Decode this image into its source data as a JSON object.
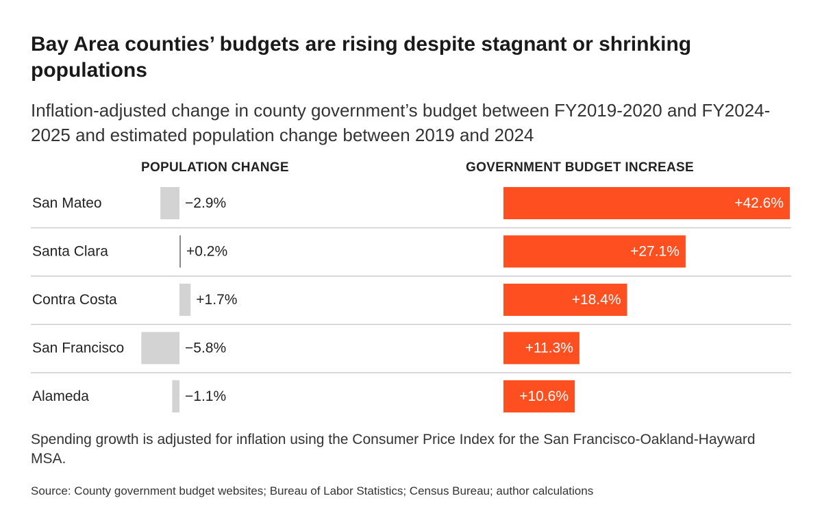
{
  "header": {
    "title": "Bay Area counties’ budgets are rising despite stagnant or shrinking populations",
    "subtitle": "Inflation-adjusted change in county government’s budget between FY2019-2020 and FY2024-2025 and estimated population change between 2019 and 2024"
  },
  "footer": {
    "note": "Spending growth is adjusted for inflation using the Consumer Price Index for the San Francisco-Oakland-Hayward MSA.",
    "source": "Source: County government budget websites; Bureau of Labor Statistics; Census Bureau; author calculations"
  },
  "colors": {
    "population_bar": "#d3d3d3",
    "budget_bar": "#fd4f1f",
    "divider": "#cccccc",
    "text": "#222222",
    "budget_label": "#ffffff"
  },
  "chart_data": {
    "type": "bar",
    "title": "Bay Area counties’ budgets are rising despite stagnant or shrinking populations",
    "categories": [
      "San Mateo",
      "Santa Clara",
      "Contra Costa",
      "San Francisco",
      "Alameda"
    ],
    "series": [
      {
        "name": "POPULATION CHANGE",
        "unit": "%",
        "values": [
          -2.9,
          0.2,
          1.7,
          -5.8,
          -1.1
        ],
        "labels": [
          "−2.9%",
          "+0.2%",
          "+1.7%",
          "−5.8%",
          "−1.1%"
        ]
      },
      {
        "name": "GOVERNMENT BUDGET INCREASE",
        "unit": "%",
        "values": [
          42.6,
          27.1,
          18.4,
          11.3,
          10.6
        ],
        "labels": [
          "+42.6%",
          "+27.1%",
          "+18.4%",
          "+11.3%",
          "+10.6%"
        ]
      }
    ]
  }
}
